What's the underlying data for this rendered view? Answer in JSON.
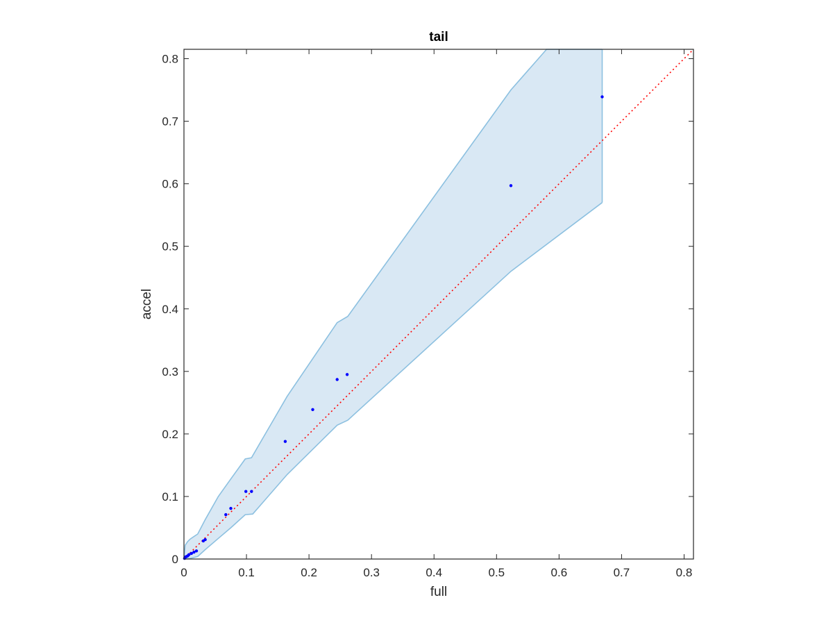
{
  "chart_data": {
    "type": "scatter",
    "title": "tail",
    "xlabel": "full",
    "ylabel": "accel",
    "xlim": [
      0,
      0.815
    ],
    "ylim": [
      0,
      0.815
    ],
    "xticks": [
      0,
      0.1,
      0.2,
      0.3,
      0.4,
      0.5,
      0.6,
      0.7,
      0.8
    ],
    "yticks": [
      0,
      0.1,
      0.2,
      0.3,
      0.4,
      0.5,
      0.6,
      0.7,
      0.8
    ],
    "xtick_labels": [
      "0",
      "0.1",
      "0.2",
      "0.3",
      "0.4",
      "0.5",
      "0.6",
      "0.7",
      "0.8"
    ],
    "ytick_labels": [
      "0",
      "0.1",
      "0.2",
      "0.3",
      "0.4",
      "0.5",
      "0.6",
      "0.7",
      "0.8"
    ],
    "grid": false,
    "colors": {
      "points": "#0000ff",
      "band_fill": "#d9e8f4",
      "band_edge": "#8cc0e0",
      "reference_line": "#ff0000",
      "axes": "#262626"
    },
    "points": [
      {
        "x": 0.001,
        "y": 0.001
      },
      {
        "x": 0.002,
        "y": 0.003
      },
      {
        "x": 0.004,
        "y": 0.004
      },
      {
        "x": 0.006,
        "y": 0.005
      },
      {
        "x": 0.008,
        "y": 0.007
      },
      {
        "x": 0.012,
        "y": 0.009
      },
      {
        "x": 0.016,
        "y": 0.011
      },
      {
        "x": 0.02,
        "y": 0.013
      },
      {
        "x": 0.031,
        "y": 0.029
      },
      {
        "x": 0.034,
        "y": 0.031
      },
      {
        "x": 0.067,
        "y": 0.071
      },
      {
        "x": 0.075,
        "y": 0.081
      },
      {
        "x": 0.099,
        "y": 0.108
      },
      {
        "x": 0.108,
        "y": 0.108
      },
      {
        "x": 0.162,
        "y": 0.188
      },
      {
        "x": 0.206,
        "y": 0.239
      },
      {
        "x": 0.245,
        "y": 0.287
      },
      {
        "x": 0.261,
        "y": 0.295
      },
      {
        "x": 0.523,
        "y": 0.597
      },
      {
        "x": 0.669,
        "y": 0.739
      }
    ],
    "reference_line": {
      "style": "dotted",
      "x": [
        0,
        0.815
      ],
      "y": [
        0,
        0.815
      ]
    },
    "confidence_band": {
      "upper": [
        {
          "x": 0.0,
          "y": 0.0
        },
        {
          "x": 0.002,
          "y": 0.022
        },
        {
          "x": 0.006,
          "y": 0.028
        },
        {
          "x": 0.01,
          "y": 0.032
        },
        {
          "x": 0.016,
          "y": 0.036
        },
        {
          "x": 0.022,
          "y": 0.04
        },
        {
          "x": 0.034,
          "y": 0.063
        },
        {
          "x": 0.055,
          "y": 0.1
        },
        {
          "x": 0.075,
          "y": 0.128
        },
        {
          "x": 0.098,
          "y": 0.16
        },
        {
          "x": 0.108,
          "y": 0.162
        },
        {
          "x": 0.165,
          "y": 0.26
        },
        {
          "x": 0.245,
          "y": 0.378
        },
        {
          "x": 0.262,
          "y": 0.388
        },
        {
          "x": 0.523,
          "y": 0.75
        },
        {
          "x": 0.58,
          "y": 0.815
        },
        {
          "x": 0.669,
          "y": 0.815
        }
      ],
      "lower": [
        {
          "x": 0.669,
          "y": 0.57
        },
        {
          "x": 0.523,
          "y": 0.46
        },
        {
          "x": 0.262,
          "y": 0.222
        },
        {
          "x": 0.245,
          "y": 0.214
        },
        {
          "x": 0.165,
          "y": 0.135
        },
        {
          "x": 0.11,
          "y": 0.072
        },
        {
          "x": 0.098,
          "y": 0.071
        },
        {
          "x": 0.075,
          "y": 0.05
        },
        {
          "x": 0.055,
          "y": 0.033
        },
        {
          "x": 0.034,
          "y": 0.015
        },
        {
          "x": 0.022,
          "y": 0.004
        },
        {
          "x": 0.01,
          "y": 0.001
        },
        {
          "x": 0.0,
          "y": 0.0
        }
      ]
    }
  }
}
